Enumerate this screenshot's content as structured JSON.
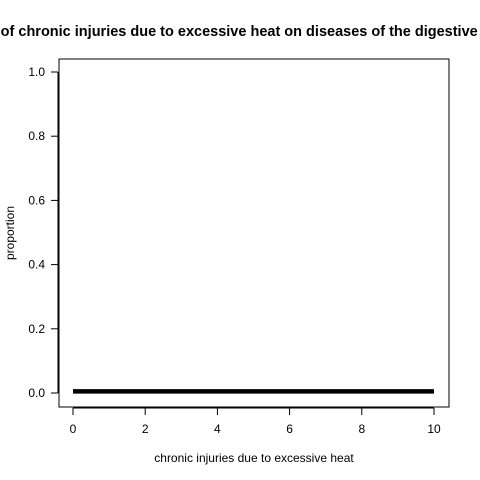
{
  "chart_data": {
    "type": "line",
    "title": "Effects of chronic injuries due to excessive heat on diseases of the digestive system",
    "xlabel": "chronic injuries due to excessive heat",
    "ylabel": "proportion",
    "xlim": [
      0,
      10
    ],
    "ylim": [
      0,
      1
    ],
    "x_ticks": [
      "0",
      "2",
      "4",
      "6",
      "8",
      "10"
    ],
    "y_ticks": [
      "0.0",
      "0.2",
      "0.4",
      "0.6",
      "0.8",
      "1.0"
    ],
    "grid": false,
    "series": [
      {
        "x": [
          0,
          10
        ],
        "y": [
          0.005,
          0.005
        ],
        "color": "#000000"
      }
    ]
  }
}
